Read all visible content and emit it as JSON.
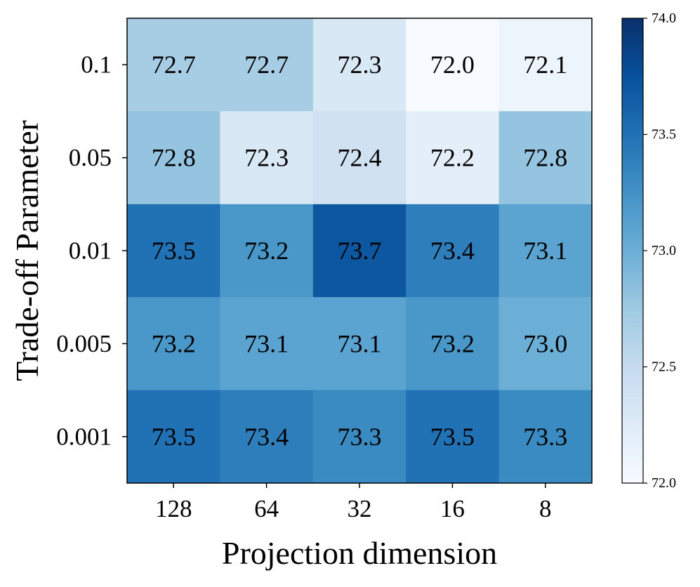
{
  "chart_data": {
    "type": "heatmap",
    "title": "",
    "xlabel": "Projection dimension",
    "ylabel": "Trade-off Parameter",
    "x_categories": [
      "128",
      "64",
      "32",
      "16",
      "8"
    ],
    "y_categories": [
      "0.1",
      "0.05",
      "0.01",
      "0.005",
      "0.001"
    ],
    "values": [
      [
        72.7,
        72.7,
        72.3,
        72.0,
        72.1
      ],
      [
        72.8,
        72.3,
        72.4,
        72.2,
        72.8
      ],
      [
        73.5,
        73.2,
        73.7,
        73.4,
        73.1
      ],
      [
        73.2,
        73.1,
        73.1,
        73.2,
        73.0
      ],
      [
        73.5,
        73.4,
        73.3,
        73.5,
        73.3
      ]
    ],
    "cell_labels": [
      [
        "72.7",
        "72.7",
        "72.3",
        "72.0",
        "72.1"
      ],
      [
        "72.8",
        "72.3",
        "72.4",
        "72.2",
        "72.8"
      ],
      [
        "73.5",
        "73.2",
        "73.7",
        "73.4",
        "73.1"
      ],
      [
        "73.2",
        "73.1",
        "73.1",
        "73.2",
        "73.0"
      ],
      [
        "73.5",
        "73.4",
        "73.3",
        "73.5",
        "73.3"
      ]
    ],
    "colorbar": {
      "min": 72.0,
      "max": 74.0,
      "ticks": [
        72.0,
        72.5,
        73.0,
        73.5,
        74.0
      ],
      "tick_labels": [
        "72.0",
        "72.5",
        "73.0",
        "73.5",
        "74.0"
      ]
    },
    "colormap": "Blues",
    "colormap_stops": [
      "#f7fbff",
      "#deebf7",
      "#c6dbef",
      "#9ecae1",
      "#6baed6",
      "#4292c6",
      "#2171b5",
      "#08519c",
      "#08306b"
    ]
  }
}
